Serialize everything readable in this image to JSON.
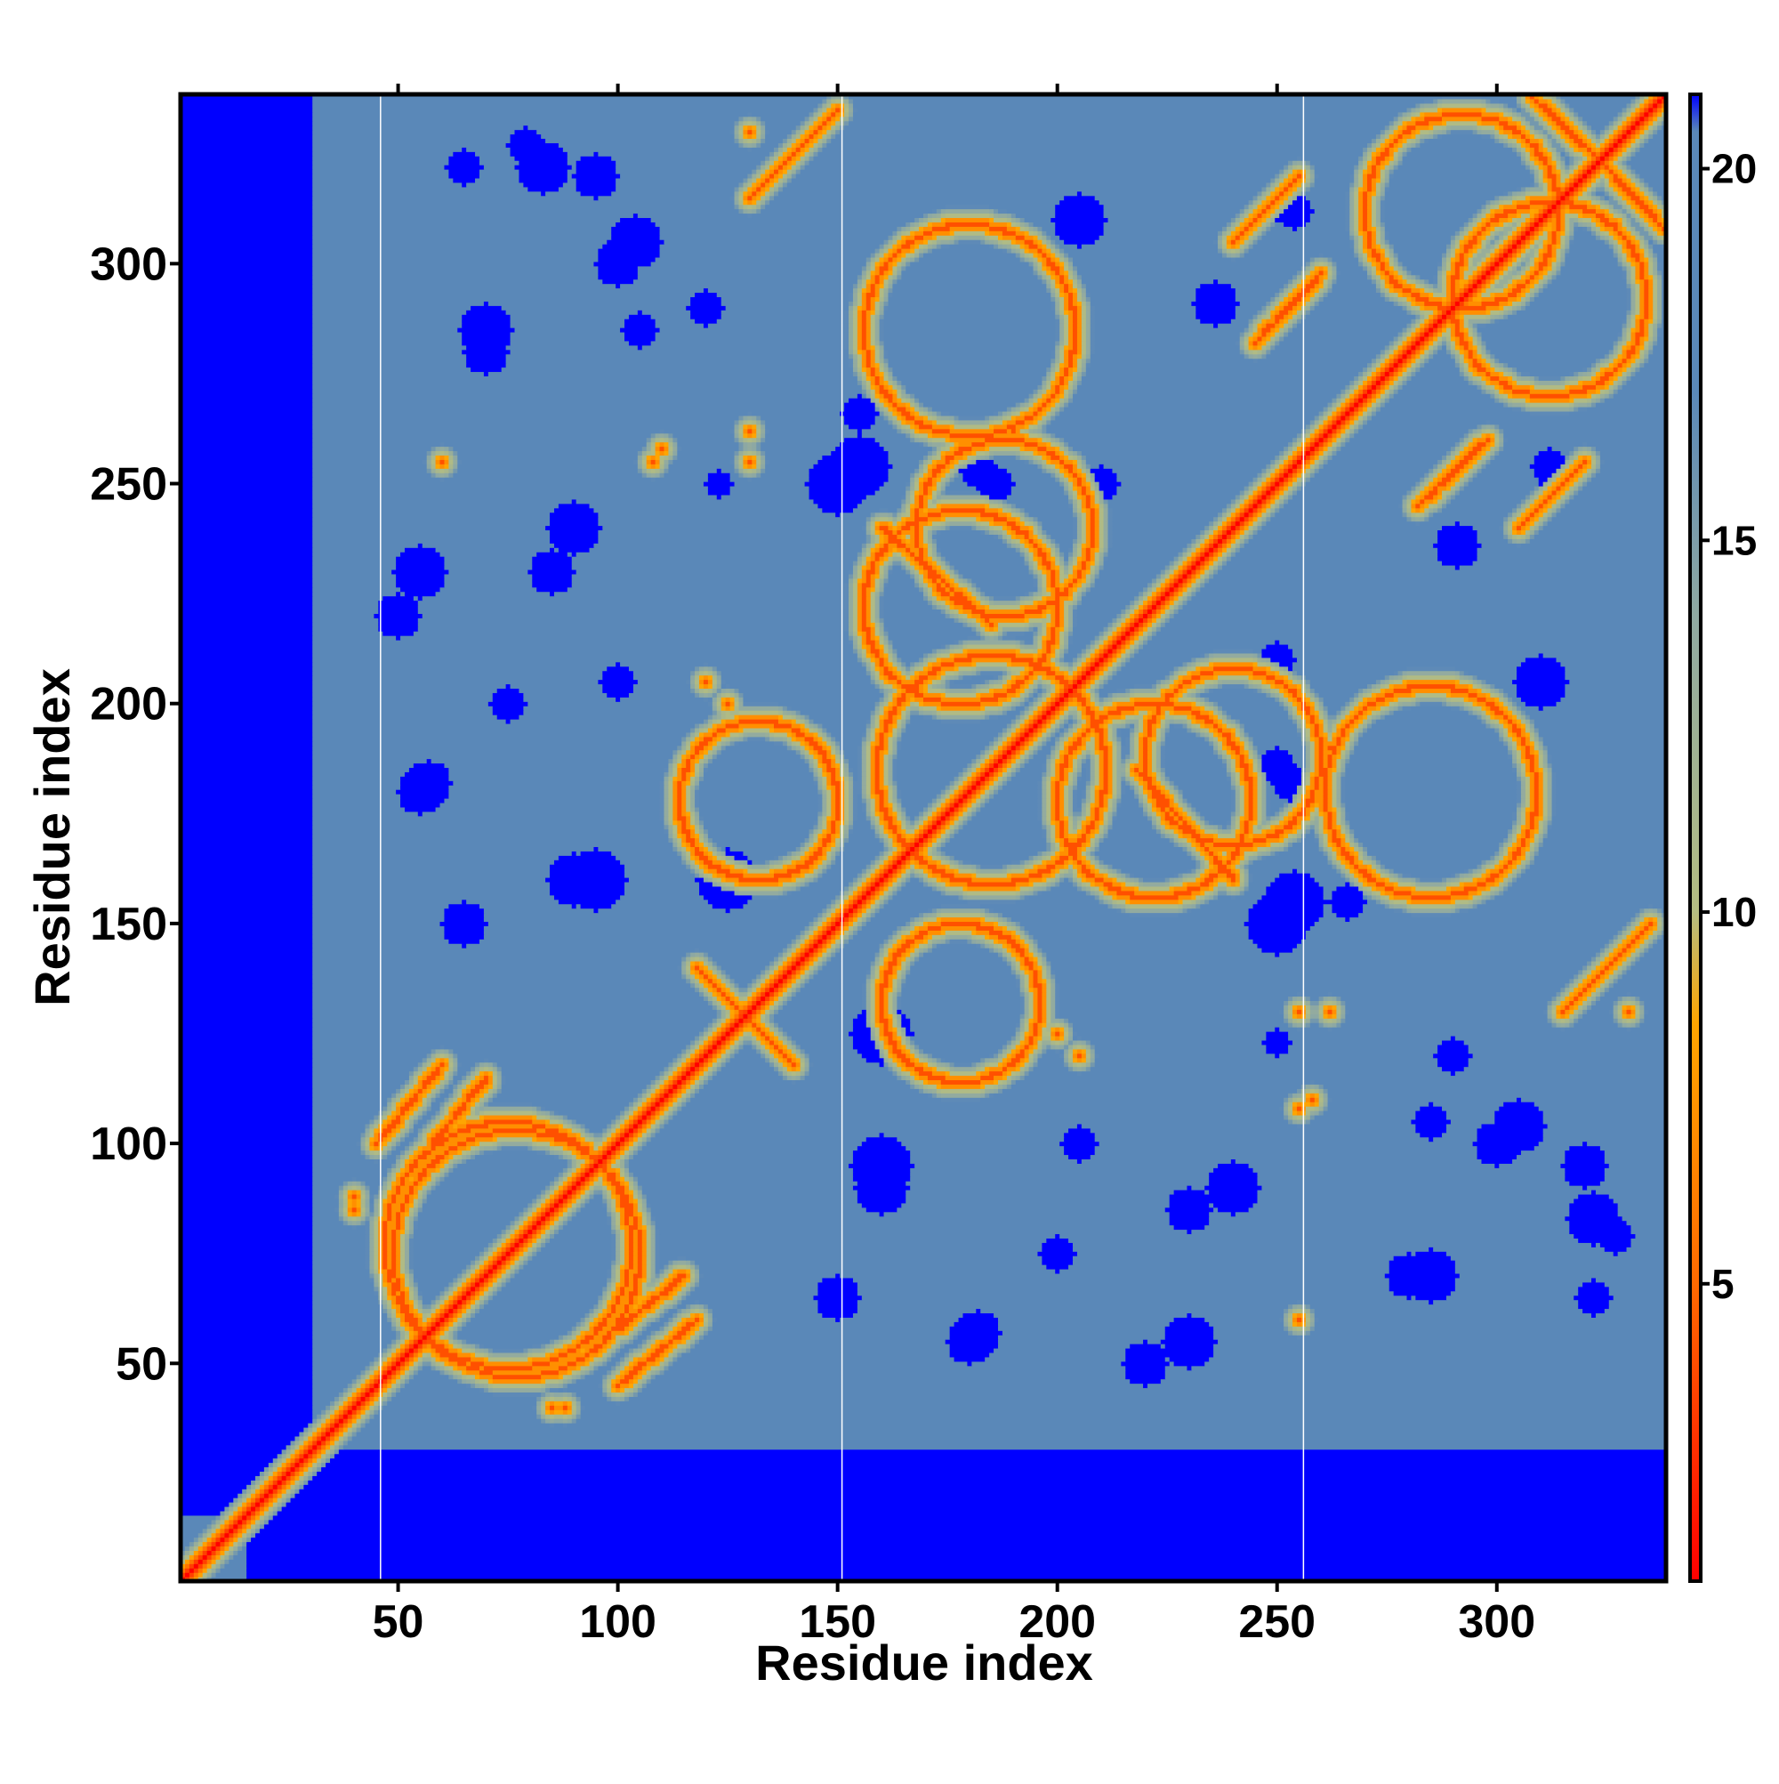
{
  "chart_data": {
    "type": "heatmap",
    "title": "",
    "xlabel": "Residue index",
    "ylabel": "Residue index",
    "n_residues": 338,
    "xlim": [
      1,
      338
    ],
    "ylim": [
      1,
      338
    ],
    "x_ticks": [
      50,
      100,
      150,
      200,
      250,
      300
    ],
    "y_ticks": [
      50,
      100,
      150,
      200,
      250,
      300
    ],
    "x_tick_labels": [
      "50",
      "100",
      "150",
      "200",
      "250",
      "300"
    ],
    "y_tick_labels": [
      "50",
      "100",
      "150",
      "200",
      "250",
      "300"
    ],
    "vertical_reference_lines_x": [
      46,
      151,
      256
    ],
    "colorbar": {
      "range": [
        1,
        21
      ],
      "ticks": [
        5,
        10,
        15,
        20
      ],
      "tick_labels": [
        "5",
        "10",
        "15",
        "20"
      ],
      "stops": [
        {
          "value": 1,
          "color": "#ff0000"
        },
        {
          "value": 5,
          "color": "#ff6a00"
        },
        {
          "value": 8.5,
          "color": "#ffa500"
        },
        {
          "value": 10,
          "color": "#b4bd82"
        },
        {
          "value": 14,
          "color": "#8fa9a2"
        },
        {
          "value": 17,
          "color": "#5a88b8"
        },
        {
          "value": 20.5,
          "color": "#5a88b8"
        },
        {
          "value": 21,
          "color": "#0000ff"
        }
      ]
    },
    "value_meaning": "pairwise residue distance; values above the colour range are drawn blue",
    "diagonal_value": 1,
    "background_value": 19,
    "masked_value": 25,
    "masked_regions": [
      {
        "x_from": 1,
        "x_to": 30,
        "y_from": 16,
        "y_to": 338
      },
      {
        "x_from": 16,
        "x_to": 338,
        "y_from": 1,
        "y_to": 30
      }
    ],
    "contact_arcs": [
      {
        "cx": 77,
        "cy": 75,
        "r": 28
      },
      {
        "cx": 185,
        "cy": 185,
        "r": 26
      },
      {
        "cx": 292,
        "cy": 312,
        "r": 22
      },
      {
        "cx": 222,
        "cy": 178,
        "r": 22
      },
      {
        "cx": 188,
        "cy": 240,
        "r": 20
      },
      {
        "cx": 132,
        "cy": 178,
        "r": 18
      },
      {
        "cx": 285,
        "cy": 180,
        "r": 24
      }
    ],
    "contact_segments": [
      {
        "x1": 120,
        "y1": 138,
        "x2": 140,
        "y2": 118
      },
      {
        "x1": 118,
        "y1": 60,
        "x2": 100,
        "y2": 45
      },
      {
        "x1": 70,
        "y1": 115,
        "x2": 58,
        "y2": 100
      },
      {
        "x1": 160,
        "y1": 240,
        "x2": 185,
        "y2": 218
      },
      {
        "x1": 305,
        "y1": 240,
        "x2": 320,
        "y2": 255
      },
      {
        "x1": 325,
        "y1": 322,
        "x2": 338,
        "y2": 308
      },
      {
        "x1": 245,
        "y1": 282,
        "x2": 260,
        "y2": 298
      },
      {
        "x1": 315,
        "y1": 130,
        "x2": 335,
        "y2": 150
      }
    ],
    "contact_spots": [
      {
        "x": 108,
        "y": 255
      },
      {
        "x": 130,
        "y": 262
      },
      {
        "x": 190,
        "y": 262
      },
      {
        "x": 120,
        "y": 205
      },
      {
        "x": 200,
        "y": 125
      },
      {
        "x": 258,
        "y": 110
      },
      {
        "x": 255,
        "y": 130
      },
      {
        "x": 40,
        "y": 88
      },
      {
        "x": 85,
        "y": 40
      },
      {
        "x": 60,
        "y": 255
      },
      {
        "x": 130,
        "y": 330
      }
    ],
    "far_blobs": [
      {
        "x": 65,
        "y": 322,
        "r": 4
      },
      {
        "x": 83,
        "y": 322,
        "r": 6
      },
      {
        "x": 104,
        "y": 305,
        "r": 6
      },
      {
        "x": 150,
        "y": 250,
        "r": 7
      },
      {
        "x": 186,
        "y": 250,
        "r": 4
      },
      {
        "x": 210,
        "y": 250,
        "r": 4
      },
      {
        "x": 236,
        "y": 291,
        "r": 5
      },
      {
        "x": 254,
        "y": 312,
        "r": 4
      },
      {
        "x": 313,
        "y": 252,
        "r": 4
      },
      {
        "x": 125,
        "y": 160,
        "r": 7
      },
      {
        "x": 95,
        "y": 160,
        "r": 7
      },
      {
        "x": 57,
        "y": 182,
        "r": 5
      },
      {
        "x": 254,
        "y": 155,
        "r": 7
      },
      {
        "x": 266,
        "y": 155,
        "r": 4
      },
      {
        "x": 253,
        "y": 182,
        "r": 4
      },
      {
        "x": 310,
        "y": 205,
        "r": 6
      },
      {
        "x": 327,
        "y": 79,
        "r": 4
      },
      {
        "x": 300,
        "y": 100,
        "r": 5
      },
      {
        "x": 240,
        "y": 90,
        "r": 6
      },
      {
        "x": 160,
        "y": 90,
        "r": 6
      },
      {
        "x": 180,
        "y": 55,
        "r": 5
      },
      {
        "x": 220,
        "y": 50,
        "r": 5
      },
      {
        "x": 200,
        "y": 75,
        "r": 4
      },
      {
        "x": 280,
        "y": 70,
        "r": 5
      },
      {
        "x": 290,
        "y": 120,
        "r": 4
      },
      {
        "x": 150,
        "y": 65,
        "r": 5
      },
      {
        "x": 320,
        "y": 95,
        "r": 5
      },
      {
        "x": 55,
        "y": 230,
        "r": 6
      },
      {
        "x": 85,
        "y": 230,
        "r": 5
      },
      {
        "x": 100,
        "y": 205,
        "r": 4
      },
      {
        "x": 70,
        "y": 285,
        "r": 6
      },
      {
        "x": 105,
        "y": 285,
        "r": 4
      },
      {
        "x": 250,
        "y": 123,
        "r": 3
      }
    ]
  }
}
